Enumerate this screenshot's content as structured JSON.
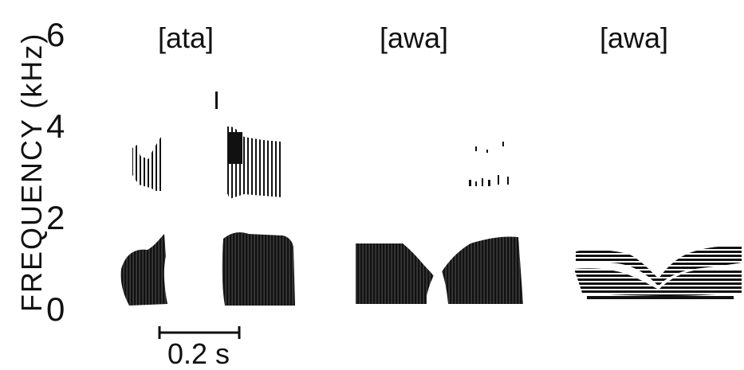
{
  "figure": {
    "y_axis": {
      "label": "FREQUENCY (kHz)",
      "ticks": [
        "0",
        "2",
        "4",
        "6"
      ]
    },
    "panels": [
      {
        "label": "[ata]"
      },
      {
        "label": "[awa]"
      },
      {
        "label": "[awa]"
      }
    ],
    "scale_bar": {
      "label": "0.2 s"
    }
  },
  "colors": {
    "ink": "#111111",
    "background": "#ffffff"
  }
}
